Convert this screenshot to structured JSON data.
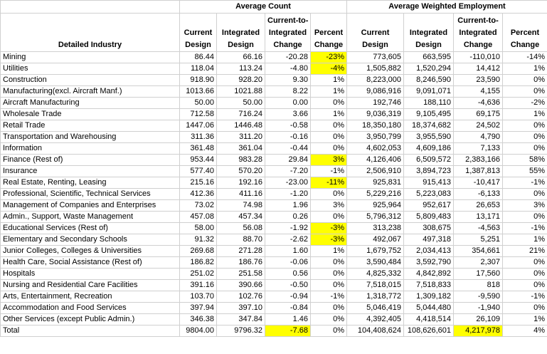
{
  "table": {
    "groups": [
      {
        "label": "Average Count",
        "span": 4
      },
      {
        "label": "Average Weighted Employment",
        "span": 4
      }
    ],
    "columns": [
      [
        "Detailed Industry"
      ],
      [
        "Current",
        "Design"
      ],
      [
        "Integrated",
        "Design"
      ],
      [
        "Current-to-",
        "Integrated",
        "Change"
      ],
      [
        "Percent",
        "Change"
      ],
      [
        "Current",
        "Design"
      ],
      [
        "Integrated",
        "Design"
      ],
      [
        "Current-to-",
        "Integrated",
        "Change"
      ],
      [
        "Percent",
        "Change"
      ]
    ],
    "rows": [
      [
        "Mining",
        "86.44",
        "66.16",
        "-20.28",
        "-23%",
        "773,605",
        "663,595",
        "-110,010",
        "-14%"
      ],
      [
        "Utilities",
        "118.04",
        "113.24",
        "-4.80",
        "-4%",
        "1,505,882",
        "1,520,294",
        "14,412",
        "1%"
      ],
      [
        "Construction",
        "918.90",
        "928.20",
        "9.30",
        "1%",
        "8,223,000",
        "8,246,590",
        "23,590",
        "0%"
      ],
      [
        "Manufacturing(excl. Aircraft Manf.)",
        "1013.66",
        "1021.88",
        "8.22",
        "1%",
        "9,086,916",
        "9,091,071",
        "4,155",
        "0%"
      ],
      [
        "Aircraft Manufacturing",
        "50.00",
        "50.00",
        "0.00",
        "0%",
        "192,746",
        "188,110",
        "-4,636",
        "-2%"
      ],
      [
        "Wholesale Trade",
        "712.58",
        "716.24",
        "3.66",
        "1%",
        "9,036,319",
        "9,105,495",
        "69,175",
        "1%"
      ],
      [
        "Retail Trade",
        "1447.06",
        "1446.48",
        "-0.58",
        "0%",
        "18,350,180",
        "18,374,682",
        "24,502",
        "0%"
      ],
      [
        "Transportation and Warehousing",
        "311.36",
        "311.20",
        "-0.16",
        "0%",
        "3,950,799",
        "3,955,590",
        "4,790",
        "0%"
      ],
      [
        "Information",
        "361.48",
        "361.04",
        "-0.44",
        "0%",
        "4,602,053",
        "4,609,186",
        "7,133",
        "0%"
      ],
      [
        "Finance (Rest of)",
        "953.44",
        "983.28",
        "29.84",
        "3%",
        "4,126,406",
        "6,509,572",
        "2,383,166",
        "58%"
      ],
      [
        "Insurance",
        "577.40",
        "570.20",
        "-7.20",
        "-1%",
        "2,506,910",
        "3,894,723",
        "1,387,813",
        "55%"
      ],
      [
        "Real Estate, Renting, Leasing",
        "215.16",
        "192.16",
        "-23.00",
        "-11%",
        "925,831",
        "915,413",
        "-10,417",
        "-1%"
      ],
      [
        "Professional, Scientific, Technical Services",
        "412.36",
        "411.16",
        "-1.20",
        "0%",
        "5,229,216",
        "5,223,083",
        "-6,133",
        "0%"
      ],
      [
        "Management of Companies and Enterprises",
        "73.02",
        "74.98",
        "1.96",
        "3%",
        "925,964",
        "952,617",
        "26,653",
        "3%"
      ],
      [
        "Admin., Support, Waste Management",
        "457.08",
        "457.34",
        "0.26",
        "0%",
        "5,796,312",
        "5,809,483",
        "13,171",
        "0%"
      ],
      [
        "Educational Services (Rest of)",
        "58.00",
        "56.08",
        "-1.92",
        "-3%",
        "313,238",
        "308,675",
        "-4,563",
        "-1%"
      ],
      [
        "Elementary and Secondary Schools",
        "91.32",
        "88.70",
        "-2.62",
        "-3%",
        "492,067",
        "497,318",
        "5,251",
        "1%"
      ],
      [
        "Junior Colleges, Colleges & Universities",
        "269.68",
        "271.28",
        "1.60",
        "1%",
        "1,679,752",
        "2,034,413",
        "354,661",
        "21%"
      ],
      [
        "Health Care, Social Assistance (Rest of)",
        "186.82",
        "186.76",
        "-0.06",
        "0%",
        "3,590,484",
        "3,592,790",
        "2,307",
        "0%"
      ],
      [
        "Hospitals",
        "251.02",
        "251.58",
        "0.56",
        "0%",
        "4,825,332",
        "4,842,892",
        "17,560",
        "0%"
      ],
      [
        "Nursing and Residential Care Facilities",
        "391.16",
        "390.66",
        "-0.50",
        "0%",
        "7,518,015",
        "7,518,833",
        "818",
        "0%"
      ],
      [
        "Arts, Entertainment, Recreation",
        "103.70",
        "102.76",
        "-0.94",
        "-1%",
        "1,318,772",
        "1,309,182",
        "-9,590",
        "-1%"
      ],
      [
        "Accommodation and Food Services",
        "397.94",
        "397.10",
        "-0.84",
        "0%",
        "5,046,419",
        "5,044,480",
        "-1,940",
        "0%"
      ],
      [
        "Other Services (except Public Admin.)",
        "346.38",
        "347.84",
        "1.46",
        "0%",
        "4,392,405",
        "4,418,514",
        "26,109",
        "1%"
      ],
      [
        "Total",
        "9804.00",
        "9796.32",
        "-7.68",
        "0%",
        "104,408,624",
        "108,626,601",
        "4,217,978",
        "4%"
      ]
    ],
    "highlight_color": "#ffff00",
    "highlighted_cells": [
      [
        0,
        4
      ],
      [
        1,
        4
      ],
      [
        9,
        4
      ],
      [
        11,
        4
      ],
      [
        15,
        4
      ],
      [
        16,
        4
      ],
      [
        24,
        3
      ],
      [
        24,
        7
      ]
    ]
  }
}
